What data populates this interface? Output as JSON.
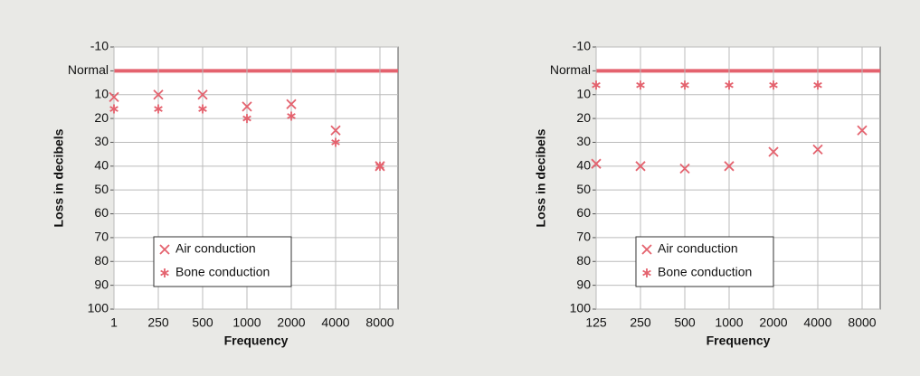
{
  "chart_data": [
    {
      "type": "scatter",
      "y_label": "Loss in decibels",
      "x_label": "Frequency",
      "categories": [
        "1",
        "250",
        "500",
        "1000",
        "2000",
        "4000",
        "8000"
      ],
      "ylim": [
        -10,
        100
      ],
      "y_inverted": true,
      "yticks": [
        -10,
        {
          "value": 0,
          "label": "Normal"
        },
        10,
        20,
        30,
        40,
        50,
        60,
        70,
        80,
        90,
        100
      ],
      "grid": true,
      "legend": "lower left",
      "normal_line_color": "#e4626e",
      "series": [
        {
          "name": "Air conduction",
          "marker": "x",
          "color": "#e4626e",
          "values": [
            11,
            10,
            10,
            15,
            14,
            25,
            40
          ]
        },
        {
          "name": "Bone conduction",
          "marker": "*",
          "color": "#e4626e",
          "values": [
            16,
            16,
            16,
            20,
            19,
            30,
            40
          ]
        }
      ]
    },
    {
      "type": "scatter",
      "y_label": "Loss in decibels",
      "x_label": "Frequency",
      "categories": [
        "125",
        "250",
        "500",
        "1000",
        "2000",
        "4000",
        "8000"
      ],
      "ylim": [
        -10,
        100
      ],
      "y_inverted": true,
      "yticks": [
        -10,
        {
          "value": 0,
          "label": "Normal"
        },
        10,
        20,
        30,
        40,
        50,
        60,
        70,
        80,
        90,
        100
      ],
      "grid": true,
      "legend": "lower left",
      "normal_line_color": "#e4626e",
      "series": [
        {
          "name": "Air conduction",
          "marker": "x",
          "color": "#e4626e",
          "values": [
            39,
            40,
            41,
            40,
            34,
            33,
            25
          ]
        },
        {
          "name": "Bone conduction",
          "marker": "*",
          "color": "#e4626e",
          "values": [
            6,
            6,
            6,
            6,
            6,
            6,
            null
          ]
        }
      ]
    }
  ]
}
